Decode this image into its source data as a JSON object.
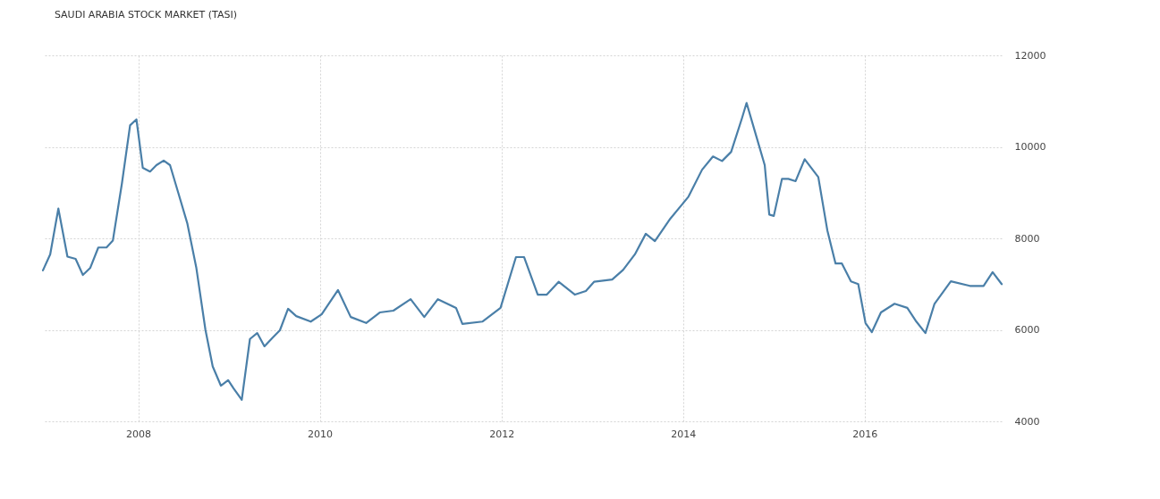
{
  "chart_data": {
    "type": "line",
    "title": "SAUDI ARABIA STOCK MARKET (TASI)",
    "x": [
      2006.95,
      2007.03,
      2007.12,
      2007.22,
      2007.31,
      2007.39,
      2007.47,
      2007.56,
      2007.65,
      2007.72,
      2007.82,
      2007.91,
      2007.98,
      2008.05,
      2008.13,
      2008.2,
      2008.28,
      2008.35,
      2008.44,
      2008.54,
      2008.64,
      2008.74,
      2008.82,
      2008.91,
      2008.99,
      2009.05,
      2009.14,
      2009.23,
      2009.31,
      2009.39,
      2009.48,
      2009.56,
      2009.65,
      2009.74,
      2009.9,
      2010.02,
      2010.2,
      2010.34,
      2010.51,
      2010.66,
      2010.81,
      2011.0,
      2011.15,
      2011.3,
      2011.5,
      2011.57,
      2011.79,
      2011.99,
      2012.16,
      2012.25,
      2012.4,
      2012.5,
      2012.63,
      2012.81,
      2012.93,
      2013.02,
      2013.22,
      2013.34,
      2013.47,
      2013.59,
      2013.69,
      2013.86,
      2014.06,
      2014.21,
      2014.33,
      2014.43,
      2014.53,
      2014.65,
      2014.7,
      2014.8,
      2014.9,
      2014.95,
      2015.0,
      2015.09,
      2015.16,
      2015.24,
      2015.34,
      2015.49,
      2015.59,
      2015.68,
      2015.75,
      2015.85,
      2015.93,
      2016.01,
      2016.08,
      2016.18,
      2016.33,
      2016.47,
      2016.57,
      2016.67,
      2016.77,
      2016.95,
      2017.16,
      2017.31,
      2017.41,
      2017.51
    ],
    "series": [
      {
        "color": "#4a7fa8",
        "values": [
          7300,
          7650,
          8650,
          7600,
          7550,
          7200,
          7350,
          7800,
          7800,
          7950,
          9200,
          10470,
          10600,
          9540,
          9460,
          9600,
          9700,
          9600,
          9000,
          8330,
          7350,
          6000,
          5200,
          4780,
          4900,
          4720,
          4470,
          5800,
          5930,
          5640,
          5830,
          5990,
          6460,
          6300,
          6180,
          6340,
          6870,
          6280,
          6150,
          6380,
          6420,
          6670,
          6280,
          6670,
          6480,
          6130,
          6180,
          6480,
          7590,
          7590,
          6770,
          6770,
          7050,
          6770,
          6850,
          7050,
          7100,
          7310,
          7650,
          8100,
          7940,
          8430,
          8910,
          9500,
          9790,
          9690,
          9890,
          10630,
          10960,
          10280,
          9600,
          8520,
          8490,
          9300,
          9300,
          9250,
          9730,
          9340,
          8170,
          7450,
          7450,
          7060,
          7000,
          6150,
          5950,
          6380,
          6570,
          6480,
          6180,
          5930,
          6570,
          7060,
          6960,
          6960,
          7260,
          7000
        ]
      }
    ],
    "xlim": [
      2006.95,
      2017.51
    ],
    "xticks": [
      2008,
      2010,
      2012,
      2014,
      2016
    ],
    "ylim": [
      4000,
      12000
    ],
    "yticks": [
      4000,
      6000,
      8000,
      10000,
      12000
    ],
    "grid": true,
    "marker": "none",
    "line_style": "solid"
  }
}
